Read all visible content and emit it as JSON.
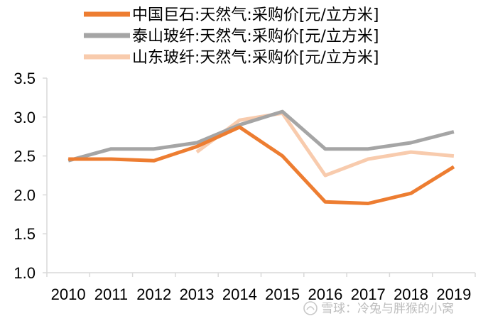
{
  "chart_data": {
    "type": "line",
    "title": "",
    "xlabel": "",
    "ylabel": "",
    "categories": [
      "2010",
      "2011",
      "2012",
      "2013",
      "2014",
      "2015",
      "2016",
      "2017",
      "2018",
      "2019"
    ],
    "ylim": [
      1.0,
      3.5
    ],
    "yticks": [
      "1.0",
      "1.5",
      "2.0",
      "2.5",
      "3.0",
      "3.5"
    ],
    "yticks_values": [
      1.0,
      1.5,
      2.0,
      2.5,
      3.0,
      3.5
    ],
    "legend_position": "top",
    "series": [
      {
        "name": "中国巨石:天然气:采购价[元/立方米]",
        "color": "#ED7D31",
        "values": [
          2.46,
          2.46,
          2.44,
          2.62,
          2.87,
          2.5,
          1.91,
          1.89,
          2.02,
          2.36
        ]
      },
      {
        "name": "泰山玻纤:天然气:采购价[元/立方米]",
        "color": "#A5A5A5",
        "values": [
          2.44,
          2.59,
          2.59,
          2.67,
          2.9,
          3.07,
          2.59,
          2.59,
          2.67,
          2.81
        ]
      },
      {
        "name": "山东玻纤:天然气:采购价[元/立方米]",
        "color": "#F8CBAD",
        "values": [
          null,
          null,
          null,
          2.55,
          2.96,
          3.05,
          2.25,
          2.46,
          2.55,
          2.5
        ]
      }
    ]
  },
  "watermark": "雪球：冷兔与胖猴的小窝"
}
